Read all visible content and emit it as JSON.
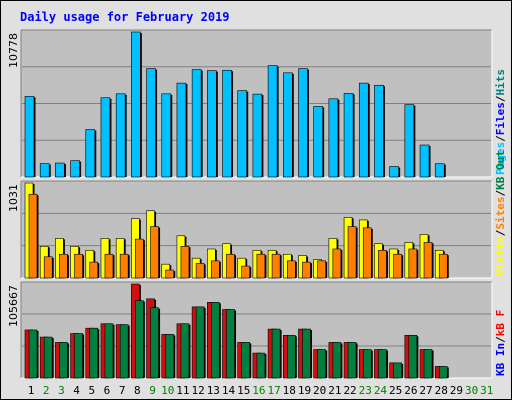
{
  "colors": {
    "background": "#e0e0e0",
    "panel": "#c0c0c0",
    "weekday": "#000000",
    "weekend": "#008000",
    "pages": "#00c0ff",
    "files": "#0000ff",
    "hits": "#008080",
    "sites": "#ff8000",
    "visits": "#ffff00",
    "kb_f": "#ff0000",
    "kb_in": "#0000ff",
    "kb_out": "#008040",
    "sites_bar": "#ff8000",
    "visits_bar": "#ffff00",
    "kb_in_bar": "#d01010",
    "kb_out_bar": "#008040"
  },
  "chart_data": {
    "type": "bar",
    "title": "Daily usage for February 2019",
    "categories": [
      "1",
      "2",
      "3",
      "4",
      "5",
      "6",
      "7",
      "8",
      "9",
      "10",
      "11",
      "12",
      "13",
      "14",
      "15",
      "16",
      "17",
      "18",
      "19",
      "20",
      "21",
      "22",
      "23",
      "24",
      "25",
      "26",
      "27",
      "28",
      "29",
      "30",
      "31"
    ],
    "weekend_days": [
      2,
      3,
      9,
      10,
      16,
      17,
      23,
      24,
      30,
      31
    ],
    "panels": [
      {
        "name": "pages-files-hits",
        "ymax_label": "10778",
        "ymax": 10778,
        "legend": [
          {
            "text": "Pages",
            "color_key": "pages"
          },
          {
            "text": "/",
            "color_key": "weekday"
          },
          {
            "text": "Files",
            "color_key": "files"
          },
          {
            "text": "/",
            "color_key": "weekday"
          },
          {
            "text": "Hits",
            "color_key": "hits"
          }
        ],
        "series": [
          {
            "name": "Pages",
            "color_key": "pages",
            "values": [
              5990,
              998,
              1038,
              1213,
              3527,
              5891,
              6183,
              10778,
              8055,
              6183,
              6977,
              7985,
              7906,
              7936,
              6419,
              6163,
              8284,
              7745,
              8055,
              5247,
              5813,
              6213,
              6977,
              6821,
              778,
              5378,
              2377,
              988,
              0,
              0,
              0
            ]
          }
        ]
      },
      {
        "name": "sites-visits",
        "ymax_label": "1031",
        "ymax": 1031,
        "legend": [
          {
            "text": "Visits",
            "color_key": "visits"
          },
          {
            "text": "/",
            "color_key": "weekday"
          },
          {
            "text": "Sites",
            "color_key": "sites"
          },
          {
            "text": "/",
            "color_key": "weekday"
          },
          {
            "text": "KB Out",
            "color_key": "kb_out"
          }
        ],
        "series": [
          {
            "name": "Visits",
            "color_key": "visits_bar",
            "values": [
              1031,
              344,
              430,
              344,
              301,
              430,
              430,
              644,
              730,
              150,
              458,
              215,
              315,
              372,
              215,
              301,
              301,
              258,
              244,
              201,
              430,
              658,
              630,
              372,
              315,
              386,
              473,
              301,
              0,
              0,
              0
            ]
          },
          {
            "name": "Sites",
            "color_key": "sites_bar",
            "values": [
              909,
              230,
              258,
              258,
              172,
              258,
              258,
              422,
              558,
              86,
              344,
              158,
              186,
              258,
              129,
              258,
              258,
              186,
              172,
              186,
              315,
              558,
              544,
              301,
              258,
              315,
              386,
              258,
              0,
              0,
              0
            ]
          }
        ]
      },
      {
        "name": "kb",
        "ymax_label": "105667",
        "ymax": 105667,
        "legend": [
          {
            "text": "KB In",
            "color_key": "kb_in"
          },
          {
            "text": "/",
            "color_key": "weekday"
          },
          {
            "text": "kB F",
            "color_key": "kb_f"
          }
        ],
        "series": [
          {
            "name": "KB In",
            "color_key": "kb_in_bar",
            "values": [
              54000,
              46000,
              40000,
              50000,
              56000,
              61000,
              60000,
              105667,
              89000,
              49000,
              61000,
              80000,
              85000,
              77000,
              40000,
              28000,
              55000,
              48000,
              55000,
              32000,
              40000,
              40000,
              32000,
              32000,
              17000,
              48000,
              32000,
              13000,
              0,
              0,
              0
            ]
          },
          {
            "name": "KB Out",
            "color_key": "kb_out_bar",
            "values": [
              54000,
              46000,
              40000,
              50000,
              56000,
              61000,
              60000,
              87000,
              79000,
              49000,
              61000,
              80000,
              85000,
              77000,
              40000,
              28000,
              55000,
              48000,
              55000,
              32000,
              40000,
              40000,
              32000,
              32000,
              17000,
              48000,
              32000,
              13000,
              0,
              0,
              0
            ]
          }
        ]
      }
    ]
  }
}
